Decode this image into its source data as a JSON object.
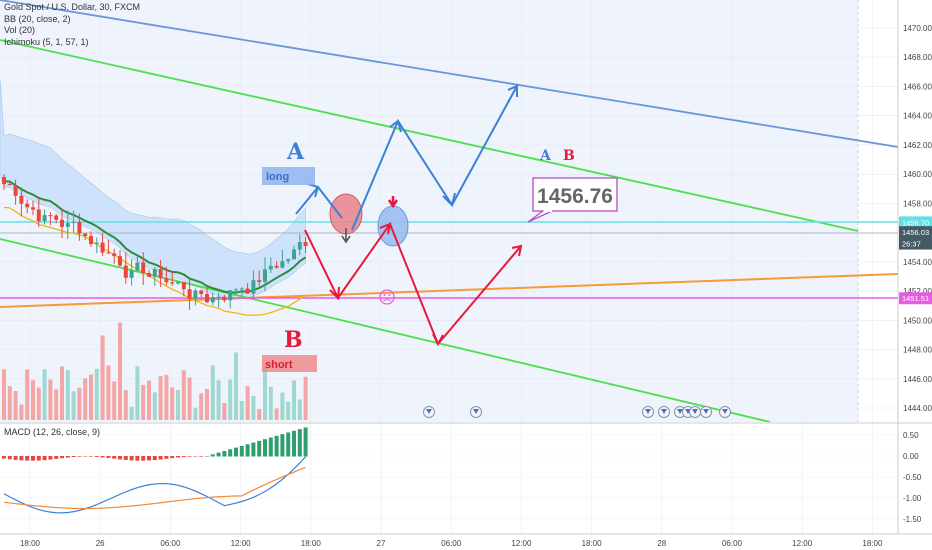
{
  "legend": {
    "symbol": "Gold Spot / U.S. Dollar, 30, FXCM",
    "bb": "BB (20, close, 2)",
    "vol": "Vol (20)",
    "ichimoku": "Ichimoku (5, 1, 57, 1)"
  },
  "macd_legend": "MACD (12, 26, close, 9)",
  "annotations": {
    "A_top": "A",
    "B_bottom": "B",
    "A_right": "A",
    "B_right": "B",
    "long_label": "long",
    "short_label": "short",
    "price_callout": "1456.76"
  },
  "colors": {
    "green_channel": "#4be04b",
    "blue_channel": "#6a97d8",
    "orange_line": "#f39c38",
    "magenta_line": "#e75de0",
    "cyan_line": "#62e0e6",
    "blue_arrow": "#3a82d6",
    "red_arrow": "#e8193c",
    "up_candle": "#3aa392",
    "down_candle": "#e8463f",
    "ichimoku_cloud": "#cfe2fb",
    "bb_mid": "#2e8b3a",
    "vol_up": "#9fd8d0",
    "vol_down": "#f4a6a6"
  },
  "chart_data": {
    "type": "line",
    "price_axis": {
      "ylim": [
        1443.2,
        1471.0
      ],
      "ticks": [
        "1470.00",
        "1468.00",
        "1466.00",
        "1464.00",
        "1462.00",
        "1460.00",
        "1458.00",
        "1456.00",
        "1454.00",
        "1452.00",
        "1450.00",
        "1448.00",
        "1446.00",
        "1444.00"
      ],
      "tags": [
        {
          "text": "1456.70",
          "color": "#62e0e6",
          "value": 1456.7
        },
        {
          "text": "1456.03",
          "color": "#455a64",
          "value": 1456.03
        },
        {
          "text": "26:37",
          "color": "#455a64",
          "value": 1455.25
        },
        {
          "text": "1451.51",
          "color": "#e75de0",
          "value": 1451.51
        }
      ]
    },
    "macd_axis": {
      "ticks": [
        "0.50",
        "0.00",
        "-0.50",
        "-1.00",
        "-1.50"
      ]
    },
    "time_axis": {
      "ticks": [
        "18:00",
        "26",
        "06:00",
        "12:00",
        "18:00",
        "27",
        "06:00",
        "12:00",
        "18:00",
        "28",
        "06:00",
        "12:00",
        "18:00"
      ]
    },
    "horizontal_levels": [
      {
        "name": "cyan",
        "value": 1456.7
      },
      {
        "name": "gray",
        "value": 1456.03
      },
      {
        "name": "magenta",
        "value": 1451.51
      }
    ]
  }
}
